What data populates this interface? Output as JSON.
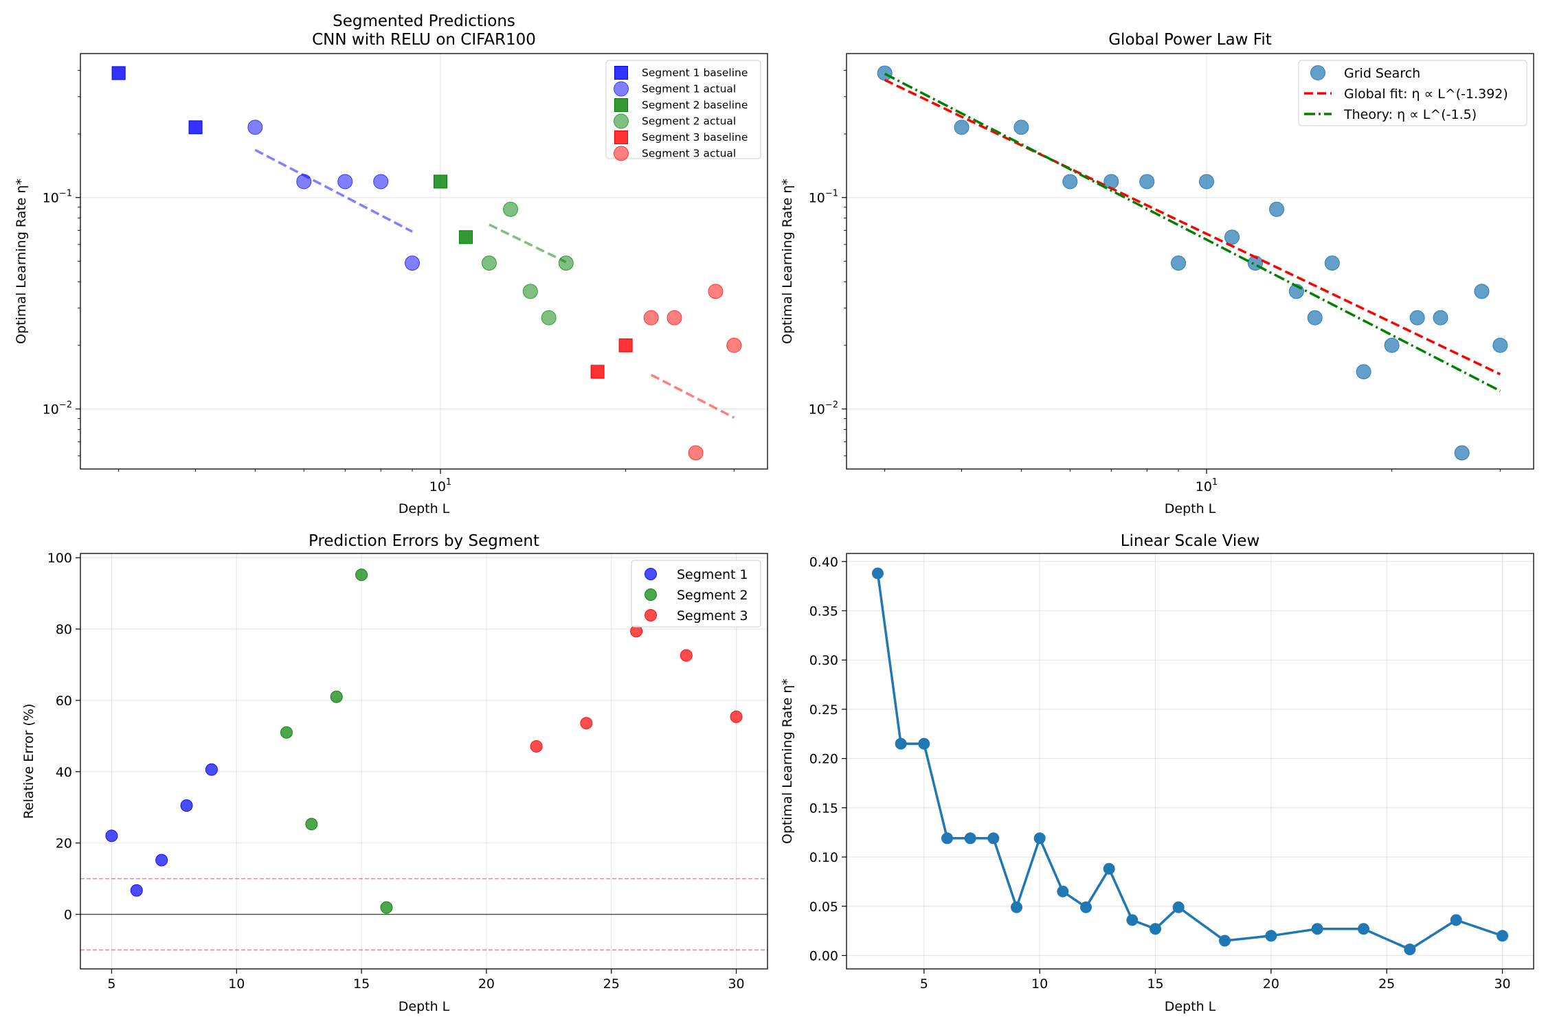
{
  "colors": {
    "seg1": "#0000ff",
    "seg2": "#008000",
    "seg3": "#ff0000",
    "grid_point": "#1f77b4",
    "global_fit": "#ff0000",
    "theory": "#008000"
  },
  "chart_data": [
    {
      "type": "scatter",
      "title": "Segmented Predictions",
      "subtitle": "CNN with RELU on CIFAR100",
      "xlabel": "Depth L",
      "ylabel": "Optimal Learning Rate η*",
      "xscale": "log",
      "yscale": "log",
      "xlim": [
        2.6,
        34
      ],
      "ylim": [
        0.0052,
        0.48
      ],
      "xticks": [
        {
          "v": 10,
          "label": "10",
          "exp": "1"
        }
      ],
      "yticks": [
        {
          "v": 0.1,
          "label": "10",
          "exp": "−1"
        },
        {
          "v": 0.01,
          "label": "10",
          "exp": "−2"
        }
      ],
      "legend_position": "upper right",
      "series": [
        {
          "name": "Segment 1 baseline",
          "marker": "square",
          "color_key": "seg1",
          "points": [
            [
              3,
              0.388
            ],
            [
              4,
              0.215
            ]
          ]
        },
        {
          "name": "Segment 1 actual",
          "marker": "circle",
          "color_key": "seg1",
          "points": [
            [
              5,
              0.215
            ],
            [
              6,
              0.119
            ],
            [
              7,
              0.119
            ],
            [
              8,
              0.119
            ],
            [
              9,
              0.049
            ]
          ]
        },
        {
          "name": "Segment 2 baseline",
          "marker": "square",
          "color_key": "seg2",
          "points": [
            [
              10,
              0.119
            ],
            [
              11,
              0.065
            ]
          ]
        },
        {
          "name": "Segment 2 actual",
          "marker": "circle",
          "color_key": "seg2",
          "points": [
            [
              12,
              0.049
            ],
            [
              13,
              0.088
            ],
            [
              14,
              0.036
            ],
            [
              15,
              0.027
            ],
            [
              16,
              0.049
            ]
          ]
        },
        {
          "name": "Segment 3 baseline",
          "marker": "square",
          "color_key": "seg3",
          "points": [
            [
              18,
              0.015
            ],
            [
              20,
              0.02
            ]
          ]
        },
        {
          "name": "Segment 3 actual",
          "marker": "circle",
          "color_key": "seg3",
          "points": [
            [
              22,
              0.027
            ],
            [
              24,
              0.027
            ],
            [
              26,
              0.0062
            ],
            [
              28,
              0.036
            ],
            [
              30,
              0.02
            ]
          ]
        }
      ],
      "prediction_lines": [
        {
          "color_key": "seg1",
          "from": [
            5,
            0.168
          ],
          "to": [
            9,
            0.069
          ]
        },
        {
          "color_key": "seg2",
          "from": [
            12,
            0.0745
          ],
          "to": [
            16,
            0.0495
          ]
        },
        {
          "color_key": "seg3",
          "from": [
            22,
            0.0145
          ],
          "to": [
            30,
            0.0091
          ]
        }
      ]
    },
    {
      "type": "scatter",
      "title": "Global Power Law Fit",
      "xlabel": "Depth L",
      "ylabel": "Optimal Learning Rate η*",
      "xscale": "log",
      "yscale": "log",
      "xlim": [
        2.6,
        34
      ],
      "ylim": [
        0.0052,
        0.48
      ],
      "xticks": [
        {
          "v": 10,
          "label": "10",
          "exp": "1"
        }
      ],
      "yticks": [
        {
          "v": 0.1,
          "label": "10",
          "exp": "−1"
        },
        {
          "v": 0.01,
          "label": "10",
          "exp": "−2"
        }
      ],
      "legend_position": "upper right",
      "series": [
        {
          "name": "Grid Search",
          "marker": "circle",
          "color_key": "grid_point",
          "points": [
            [
              3,
              0.388
            ],
            [
              4,
              0.215
            ],
            [
              5,
              0.215
            ],
            [
              6,
              0.119
            ],
            [
              7,
              0.119
            ],
            [
              8,
              0.119
            ],
            [
              9,
              0.049
            ],
            [
              10,
              0.119
            ],
            [
              11,
              0.065
            ],
            [
              12,
              0.049
            ],
            [
              13,
              0.088
            ],
            [
              14,
              0.036
            ],
            [
              15,
              0.027
            ],
            [
              16,
              0.049
            ],
            [
              18,
              0.015
            ],
            [
              20,
              0.02
            ],
            [
              22,
              0.027
            ],
            [
              24,
              0.027
            ],
            [
              26,
              0.0062
            ],
            [
              28,
              0.036
            ],
            [
              30,
              0.02
            ]
          ]
        }
      ],
      "fits": [
        {
          "name": "Global fit: η ∝ L^(-1.392)",
          "style": "dashed",
          "color_key": "global_fit",
          "x_range": [
            3,
            30
          ],
          "y_at_start": 0.36,
          "exponent": -1.392
        },
        {
          "name": "Theory: η ∝ L^(-1.5)",
          "style": "dashdot",
          "color_key": "theory",
          "x_range": [
            3,
            30
          ],
          "y_at_start": 0.385,
          "exponent": -1.5
        }
      ]
    },
    {
      "type": "scatter",
      "title": "Prediction Errors by Segment",
      "xlabel": "Depth L",
      "ylabel": "Relative Error (%)",
      "xscale": "linear",
      "yscale": "linear",
      "xlim": [
        3.75,
        31.25
      ],
      "ylim": [
        -15.3,
        101.2
      ],
      "xticks": [
        5,
        10,
        15,
        20,
        25,
        30
      ],
      "yticks": [
        0,
        20,
        40,
        60,
        80,
        100
      ],
      "legend_position": "upper right",
      "reference_lines": [
        {
          "y": 0,
          "style": "solid",
          "color": "#000000"
        },
        {
          "y": 10,
          "style": "dashed",
          "color": "#ff0000"
        },
        {
          "y": -10,
          "style": "dashed",
          "color": "#ff0000"
        }
      ],
      "series": [
        {
          "name": "Segment 1",
          "color_key": "seg1",
          "points": [
            [
              5,
              22
            ],
            [
              6,
              6.7
            ],
            [
              7,
              15.2
            ],
            [
              8,
              30.5
            ],
            [
              9,
              40.6
            ]
          ]
        },
        {
          "name": "Segment 2",
          "color_key": "seg2",
          "points": [
            [
              12,
              51
            ],
            [
              13,
              25.3
            ],
            [
              14,
              61
            ],
            [
              15,
              95.2
            ],
            [
              16,
              1.9
            ]
          ]
        },
        {
          "name": "Segment 3",
          "color_key": "seg3",
          "points": [
            [
              22,
              47.1
            ],
            [
              24,
              53.6
            ],
            [
              26,
              79.4
            ],
            [
              28,
              72.6
            ],
            [
              30,
              55.4
            ]
          ]
        }
      ]
    },
    {
      "type": "line",
      "title": "Linear Scale View",
      "xlabel": "Depth L",
      "ylabel": "Optimal Learning Rate η*",
      "xscale": "linear",
      "yscale": "linear",
      "xlim": [
        1.65,
        31.35
      ],
      "ylim": [
        -0.0136,
        0.4082
      ],
      "xticks": [
        5,
        10,
        15,
        20,
        25,
        30
      ],
      "yticks": [
        "0.00",
        "0.05",
        "0.10",
        "0.15",
        "0.20",
        "0.25",
        "0.30",
        "0.35",
        "0.40"
      ],
      "series": [
        {
          "name": "Optimal Learning Rate",
          "color_key": "grid_point",
          "x": [
            3,
            4,
            5,
            6,
            7,
            8,
            9,
            10,
            11,
            12,
            13,
            14,
            15,
            16,
            18,
            20,
            22,
            24,
            26,
            28,
            30
          ],
          "y": [
            0.388,
            0.215,
            0.215,
            0.119,
            0.119,
            0.119,
            0.049,
            0.119,
            0.065,
            0.049,
            0.088,
            0.036,
            0.027,
            0.049,
            0.015,
            0.02,
            0.027,
            0.027,
            0.0062,
            0.036,
            0.02
          ]
        }
      ]
    }
  ]
}
